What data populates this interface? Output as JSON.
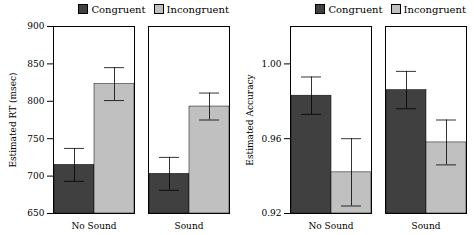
{
  "chart_data": [
    {
      "type": "bar",
      "ylabel": "Estimated RT (msec)",
      "categories": [
        "No Sound",
        "Sound"
      ],
      "series": [
        {
          "name": "Congruent",
          "color": "#404040",
          "values": [
            715,
            703
          ],
          "errors": [
            22,
            22
          ]
        },
        {
          "name": "Incongruent",
          "color": "#c0c0c0",
          "values": [
            823,
            793
          ],
          "errors": [
            22,
            18
          ]
        }
      ],
      "ylim": [
        650,
        900
      ],
      "yticks": [
        650,
        700,
        750,
        800,
        850,
        900
      ],
      "legend": "upper right"
    },
    {
      "type": "bar",
      "ylabel": "Estimated Accuracy",
      "categories": [
        "No Sound",
        "Sound"
      ],
      "series": [
        {
          "name": "Congruent",
          "color": "#404040",
          "values": [
            0.983,
            0.986
          ],
          "errors": [
            0.01,
            0.01
          ]
        },
        {
          "name": "Incongruent",
          "color": "#c0c0c0",
          "values": [
            0.942,
            0.958
          ],
          "errors": [
            0.018,
            0.012
          ]
        }
      ],
      "ylim": [
        0.92,
        1.02
      ],
      "yticks": [
        0.92,
        0.96,
        {
          "value": 1.0,
          "label": "1.00"
        }
      ],
      "legend": "upper right"
    }
  ]
}
